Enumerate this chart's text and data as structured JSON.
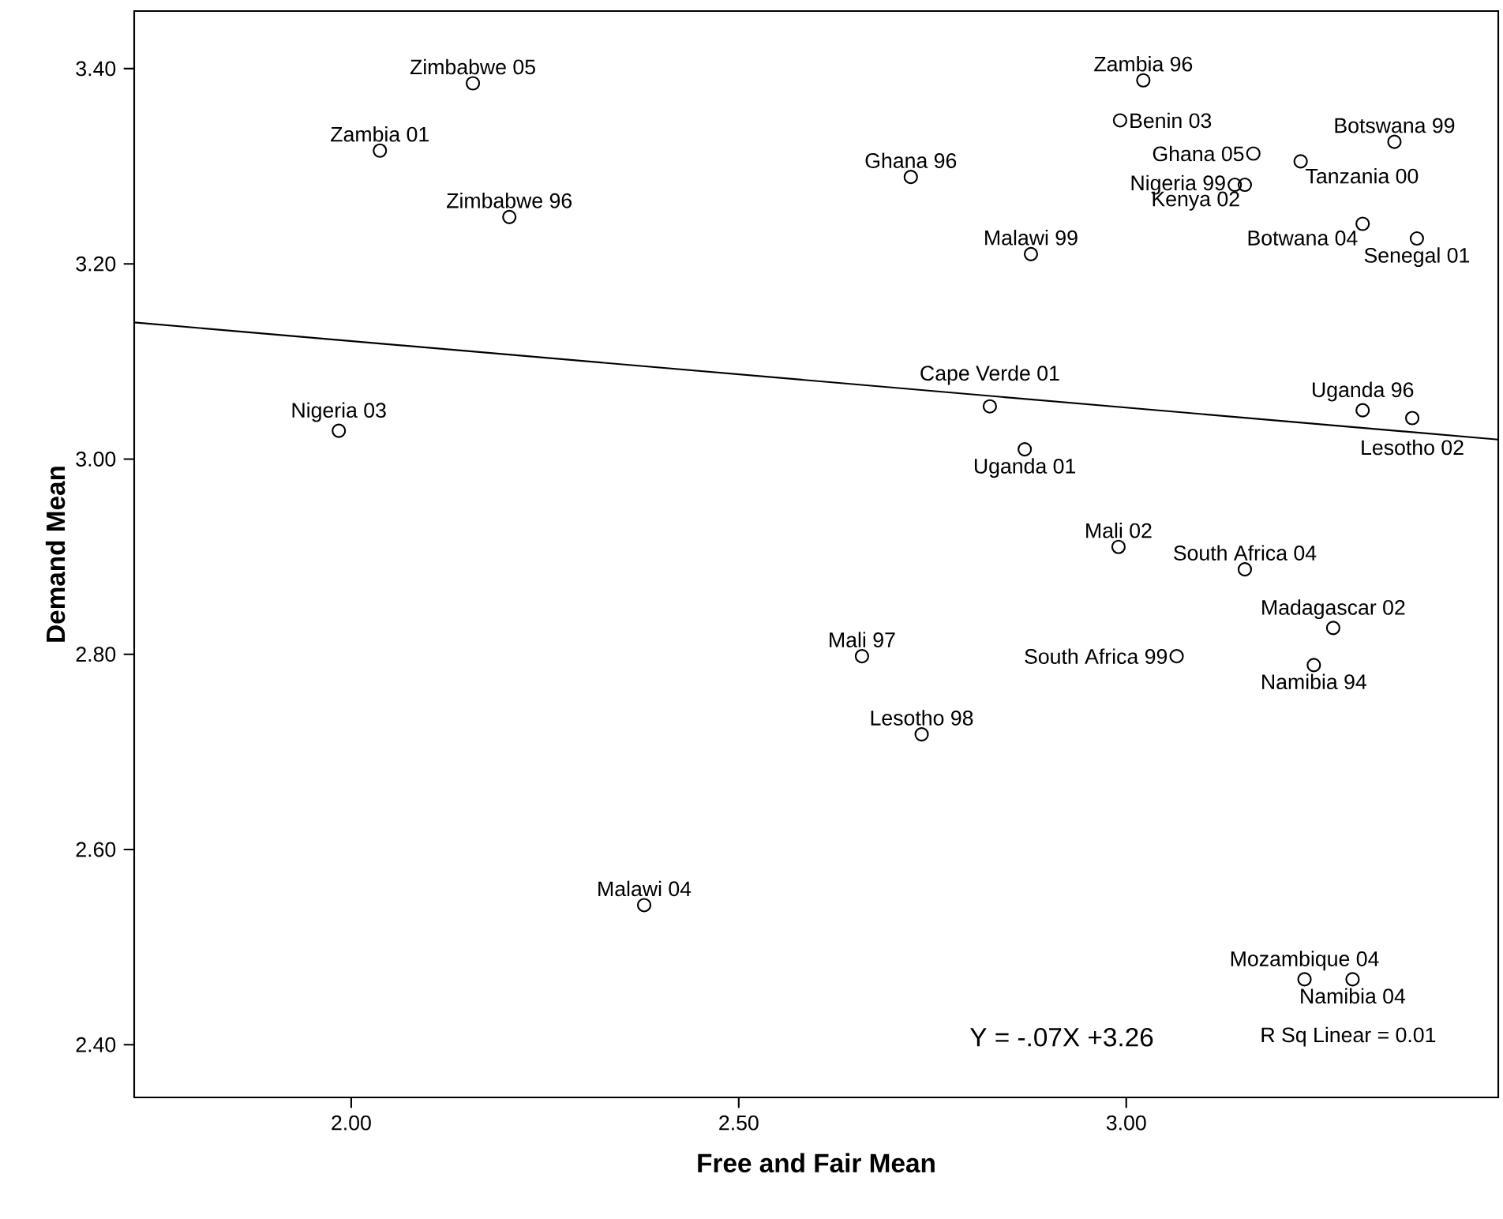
{
  "chart_data": {
    "type": "scatter",
    "xlabel": "Free and Fair Mean",
    "ylabel": "Demand Mean",
    "xlim": [
      1.72,
      3.48
    ],
    "ylim": [
      2.346,
      3.459
    ],
    "xticks": [
      {
        "value": 2.0,
        "label": "2.00"
      },
      {
        "value": 2.5,
        "label": "2.50"
      },
      {
        "value": 3.0,
        "label": "3.00"
      }
    ],
    "yticks": [
      {
        "value": 2.4,
        "label": "2.40"
      },
      {
        "value": 2.6,
        "label": "2.60"
      },
      {
        "value": 2.8,
        "label": "2.80"
      },
      {
        "value": 3.0,
        "label": "3.00"
      },
      {
        "value": 3.2,
        "label": "3.20"
      },
      {
        "value": 3.4,
        "label": "3.40"
      }
    ],
    "grid": false,
    "series": [
      {
        "type": "line",
        "color": "#000000",
        "x": [
          1.72,
          3.48
        ],
        "values": [
          3.14,
          3.02
        ]
      },
      {
        "color": "#000000",
        "marker": "circle",
        "x": [
          2.157,
          2.037,
          2.204,
          1.984,
          2.378,
          3.022,
          2.992,
          3.14,
          3.153,
          3.164,
          3.225,
          3.346,
          2.722,
          2.877,
          3.305,
          3.375,
          2.824,
          2.869,
          3.305,
          3.369,
          2.99,
          3.153,
          3.267,
          3.242,
          2.659,
          3.065,
          2.736,
          3.23,
          3.292
        ],
        "values": [
          3.385,
          3.316,
          3.248,
          3.029,
          2.543,
          3.388,
          3.347,
          3.281,
          3.281,
          3.313,
          3.305,
          3.325,
          3.289,
          3.21,
          3.241,
          3.226,
          3.054,
          3.01,
          3.05,
          3.042,
          2.91,
          2.887,
          2.827,
          2.789,
          2.798,
          2.798,
          2.718,
          2.467,
          2.467
        ],
        "value_labels": [
          "Zimbabwe 05",
          "Zambia 01",
          "Zimbabwe 96",
          "Nigeria 03",
          "Malawi 04",
          "Zambia 96",
          "Benin 03",
          "Nigeria 99",
          "Kenya 02",
          "Ghana 05",
          "Tanzania 00",
          "Botswana 99",
          "Ghana 96",
          "Malawi 99",
          "Botwana 04",
          "Senegal 01",
          "Cape Verde 01",
          "Uganda 01",
          "Uganda 96",
          "Lesotho 02",
          "Mali 02",
          "South Africa 04",
          "Madagascar 02",
          "Namibia 94",
          "Mali 97",
          "South Africa 99",
          "Lesotho 98",
          "Mozambique 04",
          "Namibia 04"
        ]
      }
    ],
    "annotations": [
      "Y = -.07X +3.26",
      "R Sq Linear = 0.01"
    ]
  }
}
